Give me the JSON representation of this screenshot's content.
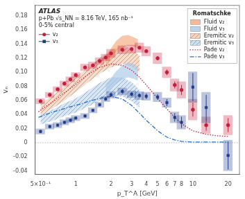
{
  "chart_data": {
    "type": "scatter",
    "xlabel": "p_T^A [GeV]",
    "ylabel": "vₙ",
    "annotations": [
      "ATLAS",
      "p+Pb √s_NN = 8.16 TeV, 165 nb⁻¹",
      "0-5% central"
    ],
    "log": "x",
    "xlim": [
      0.45,
      25
    ],
    "xticks": [
      {
        "value": 0.5,
        "label": "5×10⁻¹"
      },
      1,
      2,
      3,
      4,
      5,
      6,
      7,
      8,
      10,
      20
    ],
    "ylim": [
      -0.045,
      0.195
    ],
    "yticks": [
      -0.04,
      -0.02,
      0,
      0.02,
      0.04,
      0.06,
      0.08,
      {
        "value": 0.1,
        "label": "0.10"
      },
      0.12,
      0.14,
      0.16,
      0.18
    ],
    "grid": false,
    "legend": "upper right",
    "legend_title": "Romatschke",
    "hlines": [
      0
    ],
    "series": [
      {
        "name": "v₂",
        "type": "scatter",
        "marker": "circle",
        "color": "#C41E3A",
        "legend": "upper left",
        "x": [
          0.5,
          0.6,
          0.7,
          0.8,
          0.9,
          1.0,
          1.2,
          1.4,
          1.6,
          1.8,
          2.0,
          2.5,
          3.0,
          3.5,
          4.0,
          5.0,
          6.0,
          7.0,
          8.0,
          10.0,
          13.0,
          20.0
        ],
        "values": [
          0.059,
          0.068,
          0.076,
          0.084,
          0.09,
          0.096,
          0.107,
          0.11,
          0.116,
          0.121,
          0.127,
          0.132,
          0.133,
          0.135,
          0.13,
          0.12,
          0.1,
          0.082,
          0.075,
          0.047,
          0.025,
          0.025
        ],
        "yerr_stat": [
          0.002,
          0.002,
          0.002,
          0.002,
          0.002,
          0.002,
          0.002,
          0.002,
          0.002,
          0.002,
          0.002,
          0.002,
          0.002,
          0.002,
          0.002,
          0.003,
          0.004,
          0.005,
          0.007,
          0.01,
          0.008,
          0.01
        ],
        "yerr_sys": [
          0.004,
          0.004,
          0.004,
          0.004,
          0.004,
          0.004,
          0.005,
          0.005,
          0.005,
          0.005,
          0.006,
          0.006,
          0.006,
          0.007,
          0.007,
          0.008,
          0.008,
          0.009,
          0.012,
          0.015,
          0.012,
          0.014
        ]
      },
      {
        "name": "v₃",
        "type": "scatter",
        "marker": "square",
        "color": "#1E3A8A",
        "legend": "upper left",
        "x": [
          0.5,
          0.6,
          0.7,
          0.8,
          0.9,
          1.0,
          1.2,
          1.4,
          1.6,
          1.8,
          2.0,
          2.5,
          3.0,
          3.5,
          4.0,
          5.0,
          6.0,
          7.0,
          8.0,
          10.0,
          13.0,
          20.0
        ],
        "values": [
          0.016,
          0.023,
          0.025,
          0.029,
          0.032,
          0.035,
          0.038,
          0.046,
          0.054,
          0.062,
          0.068,
          0.073,
          0.069,
          0.067,
          0.066,
          0.065,
          0.057,
          0.036,
          0.029,
          0.079,
          0.05,
          -0.018
        ],
        "yerr_stat": [
          0.002,
          0.002,
          0.002,
          0.002,
          0.002,
          0.002,
          0.002,
          0.002,
          0.002,
          0.002,
          0.003,
          0.003,
          0.003,
          0.003,
          0.004,
          0.004,
          0.005,
          0.006,
          0.008,
          0.02,
          0.018,
          0.02
        ],
        "yerr_sys": [
          0.004,
          0.004,
          0.004,
          0.004,
          0.004,
          0.004,
          0.004,
          0.004,
          0.004,
          0.004,
          0.005,
          0.005,
          0.005,
          0.006,
          0.006,
          0.007,
          0.007,
          0.008,
          0.01,
          0.022,
          0.022,
          0.022
        ]
      },
      {
        "name": "Fluid v₂",
        "type": "band",
        "color": "#F5A87A",
        "x": [
          1.8,
          2.0,
          2.2,
          2.5,
          2.8,
          3.1,
          3.4
        ],
        "low": [
          0.108,
          0.118,
          0.127,
          0.135,
          0.138,
          0.137,
          0.134
        ],
        "high": [
          0.122,
          0.134,
          0.144,
          0.152,
          0.153,
          0.15,
          0.147
        ]
      },
      {
        "name": "Fluid v₃",
        "type": "band",
        "color": "#A8C8E8",
        "x": [
          1.8,
          2.0,
          2.2,
          2.5,
          2.8,
          3.1,
          3.4
        ],
        "low": [
          0.068,
          0.076,
          0.083,
          0.09,
          0.093,
          0.091,
          0.088
        ],
        "high": [
          0.083,
          0.092,
          0.101,
          0.11,
          0.114,
          0.112,
          0.108
        ]
      },
      {
        "name": "Eremitic v₂",
        "type": "hatched_band",
        "color": "#F5C0A0",
        "x": [
          0.5,
          0.65,
          0.8,
          1.0,
          1.3,
          1.6,
          2.0,
          2.5,
          3.0,
          3.5
        ],
        "low": [
          0.038,
          0.05,
          0.06,
          0.072,
          0.087,
          0.098,
          0.107,
          0.112,
          0.108,
          0.1
        ],
        "high": [
          0.055,
          0.068,
          0.08,
          0.093,
          0.108,
          0.12,
          0.132,
          0.138,
          0.133,
          0.124
        ]
      },
      {
        "name": "Eremitic v₃",
        "type": "hatched_band",
        "color": "#B8D4F0",
        "x": [
          0.5,
          0.65,
          0.8,
          1.0,
          1.3,
          1.6,
          2.0,
          2.5,
          3.0,
          3.5
        ],
        "low": [
          0.026,
          0.032,
          0.038,
          0.043,
          0.052,
          0.06,
          0.066,
          0.066,
          0.059,
          0.05
        ],
        "high": [
          0.04,
          0.048,
          0.056,
          0.063,
          0.075,
          0.085,
          0.093,
          0.093,
          0.086,
          0.075
        ]
      },
      {
        "name": "Pade v₂",
        "type": "line",
        "line_style": "dotted",
        "color": "#C41E3A",
        "x": [
          0.48,
          0.55,
          0.65,
          0.75,
          0.85,
          0.95,
          1.1,
          1.3,
          1.6,
          2.0,
          2.5,
          3.0,
          3.5,
          4.0,
          5.0,
          6.0,
          7.0,
          8.0,
          10.0,
          13.0,
          16.0,
          20.0
        ],
        "values": [
          0.044,
          0.051,
          0.059,
          0.068,
          0.074,
          0.08,
          0.089,
          0.098,
          0.107,
          0.112,
          0.11,
          0.103,
          0.093,
          0.082,
          0.063,
          0.048,
          0.036,
          0.027,
          0.017,
          0.012,
          0.01,
          0.009
        ]
      },
      {
        "name": "Pade v₃",
        "type": "line",
        "line_style": "dashdot",
        "color": "#1E6FD4",
        "x": [
          0.48,
          0.55,
          0.65,
          0.75,
          0.85,
          0.95,
          1.1,
          1.3,
          1.6,
          2.0,
          2.5,
          3.0,
          3.5,
          4.0,
          5.0,
          6.0,
          7.0,
          8.0,
          10.0,
          13.0,
          16.0,
          20.0
        ],
        "values": [
          0.036,
          0.04,
          0.044,
          0.047,
          0.05,
          0.052,
          0.055,
          0.059,
          0.063,
          0.066,
          0.062,
          0.053,
          0.042,
          0.032,
          0.017,
          0.008,
          0.004,
          0.002,
          0.001,
          0.001,
          0.001,
          0.001
        ]
      }
    ]
  }
}
